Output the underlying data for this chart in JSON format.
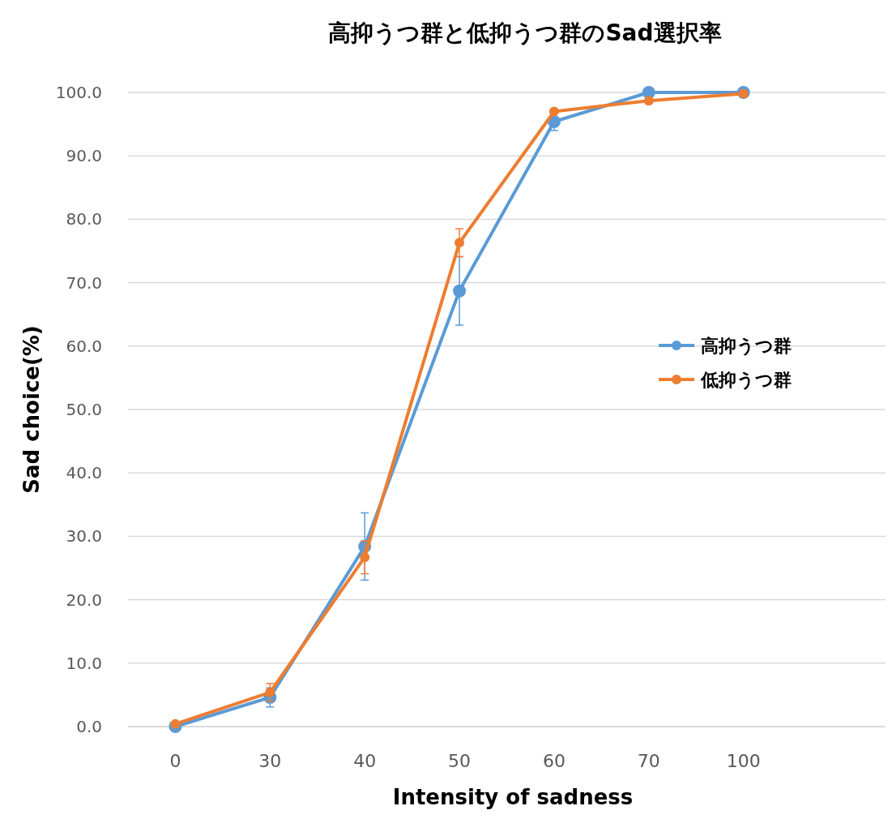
{
  "chart_data": {
    "type": "line",
    "title": "高抑うつ群と低抑うつ群のSad選択率",
    "xlabel": "Intensity of sadness",
    "ylabel": "Sad choice(%)",
    "categories": [
      "0",
      "30",
      "40",
      "50",
      "60",
      "70",
      "100",
      null
    ],
    "series": [
      {
        "name": "高抑うつ群",
        "color": "#5b9bd5",
        "values": [
          0,
          4.6,
          28.4,
          68.7,
          95.4,
          100,
          100,
          null
        ],
        "errors": [
          null,
          1.5,
          5.3,
          5.4,
          1.4,
          null,
          null,
          null
        ]
      },
      {
        "name": "低抑うつ群",
        "color": "#ed7d31",
        "values": [
          0.4,
          5.4,
          26.7,
          76.3,
          97.0,
          98.7,
          99.8,
          null
        ],
        "errors": [
          null,
          1.4,
          2.6,
          2.2,
          null,
          null,
          null,
          null
        ]
      }
    ],
    "ylim": [
      0,
      100
    ],
    "yticks": [
      {
        "value": 0,
        "label": "0.0"
      },
      {
        "value": 10,
        "label": "10.0"
      },
      {
        "value": 20,
        "label": "20.0"
      },
      {
        "value": 30,
        "label": "30.0"
      },
      {
        "value": 40,
        "label": "40.0"
      },
      {
        "value": 50,
        "label": "50.0"
      },
      {
        "value": 60,
        "label": "60.0"
      },
      {
        "value": 70,
        "label": "70.0"
      },
      {
        "value": 80,
        "label": "80.0"
      },
      {
        "value": 90,
        "label": "90.0"
      },
      {
        "value": 100,
        "label": "100.0"
      }
    ],
    "grid": "y",
    "legend": "right",
    "marker": "circle",
    "line_style": "solid"
  }
}
